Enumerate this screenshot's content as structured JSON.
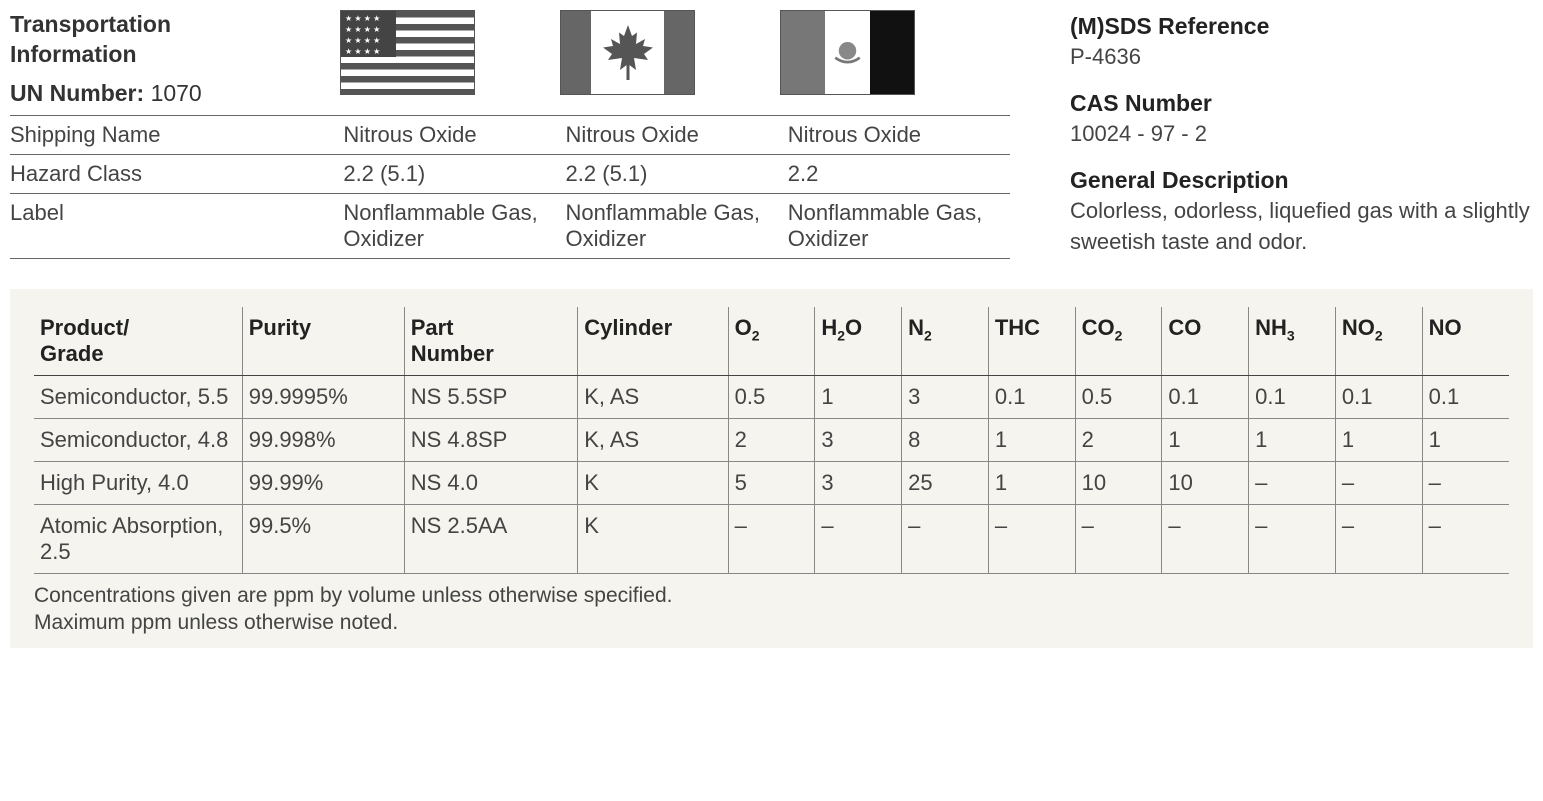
{
  "transport": {
    "title_line1": "Transportation",
    "title_line2": "Information",
    "un_label": "UN Number:",
    "un_value": "1070",
    "row_labels": [
      "Shipping Name",
      "Hazard Class",
      "Label"
    ],
    "countries": [
      {
        "flag": "us",
        "shipping_name": "Nitrous Oxide",
        "hazard_class": "2.2 (5.1)",
        "label": "Nonflammable Gas, Oxidizer"
      },
      {
        "flag": "ca",
        "shipping_name": "Nitrous Oxide",
        "hazard_class": "2.2 (5.1)",
        "label": "Nonflammable Gas, Oxidizer"
      },
      {
        "flag": "mx",
        "shipping_name": "Nitrous Oxide",
        "hazard_class": "2.2",
        "label": "Nonflammable Gas, Oxidizer"
      }
    ]
  },
  "reference": {
    "msds_heading": "(M)SDS Reference",
    "msds_value": "P-4636",
    "cas_heading": "CAS Number",
    "cas_value": "10024 - 97 - 2",
    "desc_heading": "General Description",
    "desc_value": "Colorless, odorless, liquefied gas with a slightly sweetish taste and odor."
  },
  "product_table": {
    "columns": [
      "Product/ Grade",
      "Purity",
      "Part Number",
      "Cylinder",
      "O2",
      "H2O",
      "N2",
      "THC",
      "CO2",
      "CO",
      "NH3",
      "NO2",
      "NO"
    ],
    "column_html": [
      "Product/<br>Grade",
      "Purity",
      "Part<br>Number",
      "Cylinder",
      "O<sub>2</sub>",
      "H<sub>2</sub>O",
      "N<sub>2</sub>",
      "THC",
      "CO<sub>2</sub>",
      "CO",
      "NH<sub>3</sub>",
      "NO<sub>2</sub>",
      "NO"
    ],
    "col_classes": [
      "col-grade",
      "col-purity",
      "col-part",
      "col-cyl",
      "col-small",
      "col-small",
      "col-small",
      "col-small",
      "col-small",
      "col-small",
      "col-small",
      "col-small",
      "col-small"
    ],
    "rows": [
      [
        "Semiconductor, 5.5",
        "99.9995%",
        "NS 5.5SP",
        "K, AS",
        "0.5",
        "1",
        "3",
        "0.1",
        "0.5",
        "0.1",
        "0.1",
        "0.1",
        "0.1"
      ],
      [
        "Semiconductor, 4.8",
        "99.998%",
        "NS 4.8SP",
        "K, AS",
        "2",
        "3",
        "8",
        "1",
        "2",
        "1",
        "1",
        "1",
        "1"
      ],
      [
        "High Purity, 4.0",
        "99.99%",
        "NS 4.0",
        "K",
        "5",
        "3",
        "25",
        "1",
        "10",
        "10",
        "–",
        "–",
        "–"
      ],
      [
        "Atomic Absorption, 2.5",
        "99.5%",
        "NS 2.5AA",
        "K",
        "–",
        "–",
        "–",
        "–",
        "–",
        "–",
        "–",
        "–",
        "–"
      ]
    ],
    "footnote1": "Concentrations given are ppm by volume unless otherwise specified.",
    "footnote2": "Maximum ppm unless otherwise noted."
  },
  "colors": {
    "text": "#333333",
    "muted_text": "#444444",
    "border": "#666666",
    "table_bg": "#f5f4ee",
    "flag_dark": "#555555"
  }
}
